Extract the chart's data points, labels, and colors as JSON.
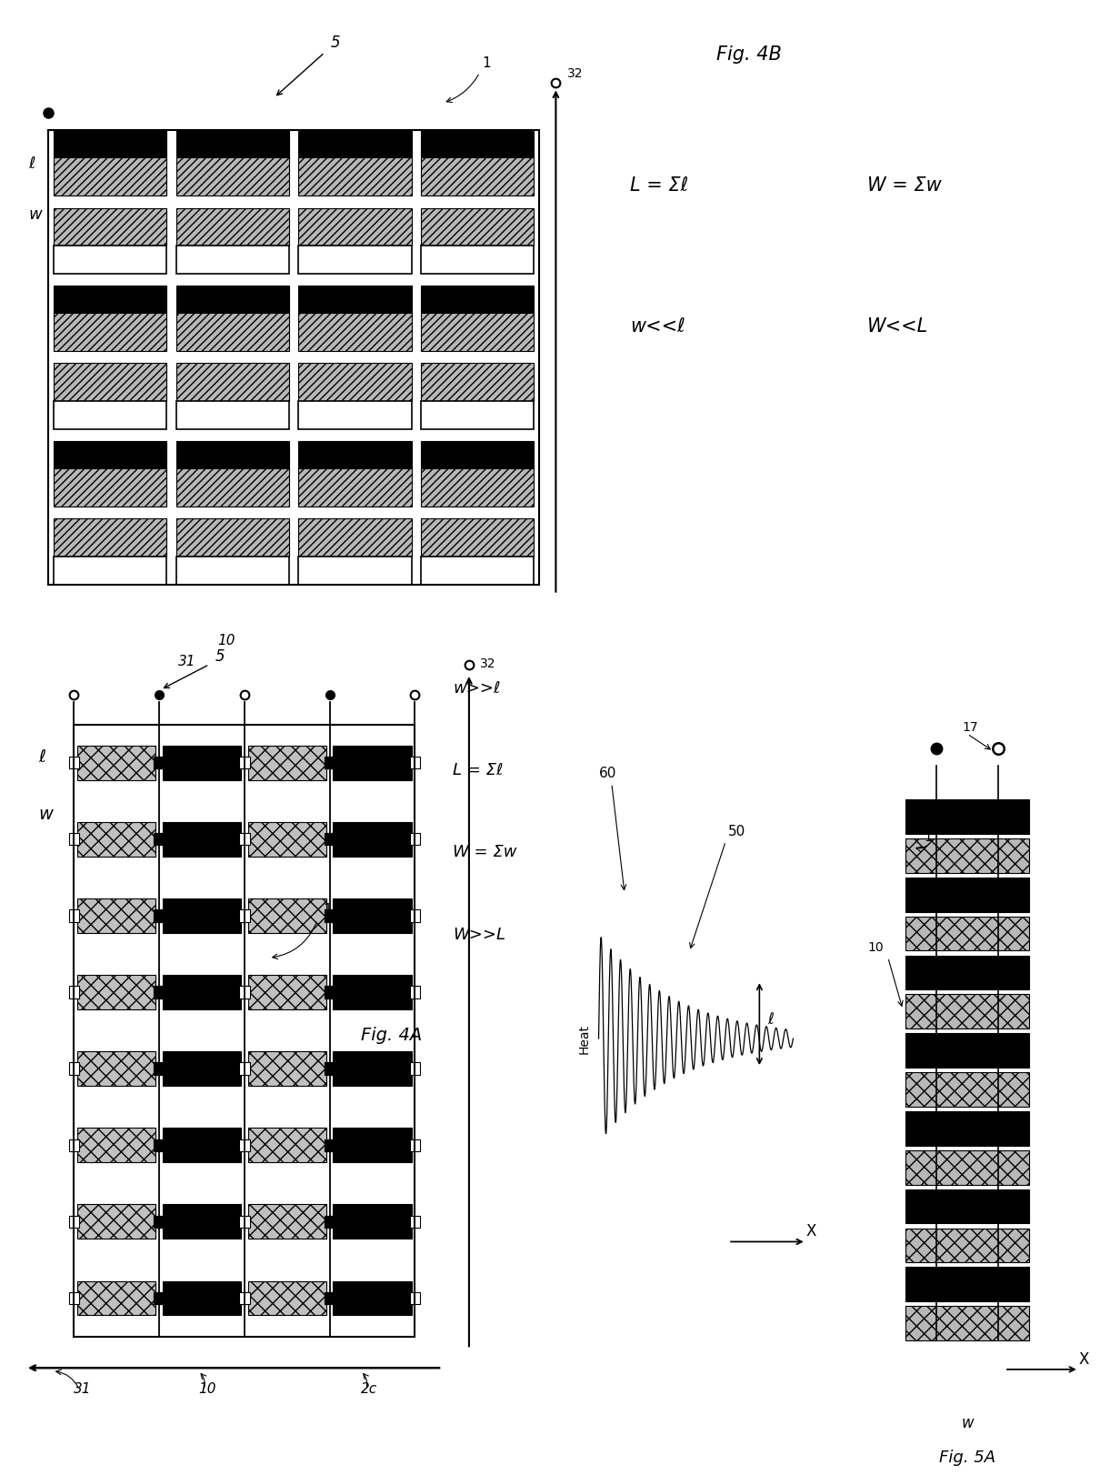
{
  "fig_width": 12.4,
  "fig_height": 16.65,
  "bg_color": "#ffffff",
  "fig4B_equations": [
    "L = Σℓ",
    "W = Σw",
    "w<<ℓ",
    "W<<L"
  ],
  "fig4A_equations": [
    "w>>ℓ",
    "L = Σℓ",
    "W = Σw",
    "W>>L"
  ],
  "labels": {
    "fig4A_title": "Fig. 4A",
    "fig4B_title": "Fig. 4B",
    "fig5A_title": "Fig. 5A",
    "label_5": "5",
    "label_32": "32",
    "label_1": "1",
    "label_10": "10",
    "label_31": "31",
    "label_2c": "2c",
    "label_17": "17",
    "label_50": "50",
    "label_60": "60",
    "label_l": "ℓ",
    "label_w": "w",
    "label_x": "X",
    "label_heat": "Heat"
  }
}
